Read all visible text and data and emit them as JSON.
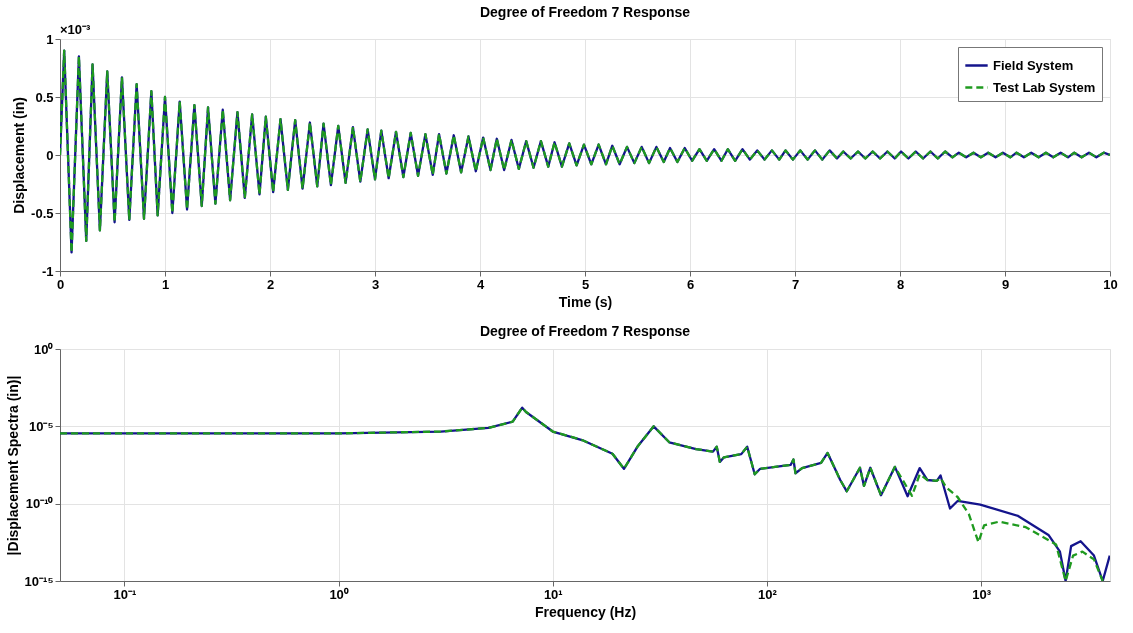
{
  "chart_data": [
    {
      "type": "line",
      "title": "Degree of Freedom 7 Response",
      "xlabel": "Time (s)",
      "ylabel": "Displacement (in)",
      "annotations": [
        "×10⁻³"
      ],
      "xlim": [
        0,
        10
      ],
      "xticks": [
        0,
        1,
        2,
        3,
        4,
        5,
        6,
        7,
        8,
        9,
        10
      ],
      "ylim": [
        -1,
        1
      ],
      "yticks": [
        -1,
        -0.5,
        0,
        0.5,
        1
      ],
      "grid": true,
      "legend": "top right",
      "x": [
        0,
        0.04,
        0.11,
        0.18,
        0.25,
        0.31,
        0.38,
        0.45,
        0.52,
        0.59,
        0.66,
        0.73,
        0.8,
        0.87,
        0.93,
        1.0,
        1.07,
        1.14,
        1.21,
        1.28,
        1.35,
        1.41,
        1.48,
        1.55,
        1.62,
        1.69,
        1.76,
        1.83,
        1.9,
        1.96,
        2.03,
        2.1,
        2.17,
        2.24,
        2.31,
        2.38,
        2.45,
        2.51,
        2.58,
        2.65,
        2.72,
        2.79,
        2.86,
        2.93,
        3.0,
        3.06,
        3.13,
        3.2,
        3.27,
        3.34,
        3.41,
        3.48,
        3.55,
        3.61,
        3.68,
        3.75,
        3.82,
        3.89,
        3.96,
        4.03,
        4.1,
        4.16,
        4.23,
        4.3,
        4.37,
        4.44,
        4.51,
        4.58,
        4.65,
        4.71,
        4.78,
        4.85,
        4.92,
        4.99,
        5.06,
        5.13,
        5.2,
        5.26,
        5.33,
        5.4,
        5.47,
        5.54,
        5.61,
        5.68,
        5.75,
        5.81,
        5.88,
        5.95,
        6.02,
        6.09,
        6.16,
        6.23,
        6.3,
        6.36,
        6.43,
        6.5,
        6.57,
        6.64,
        6.71,
        6.78,
        6.85,
        6.91,
        6.98,
        7.05,
        7.12,
        7.19,
        7.26,
        7.33,
        7.4,
        7.46,
        7.53,
        7.6,
        7.67,
        7.74,
        7.81,
        7.88,
        7.95,
        8.01,
        8.08,
        8.15,
        8.22,
        8.29,
        8.36,
        8.43,
        8.5,
        8.56,
        8.63,
        8.7,
        8.77,
        8.84,
        8.91,
        8.98,
        9.05,
        9.11,
        9.18,
        9.25,
        9.32,
        9.39,
        9.46,
        9.53,
        9.6,
        9.66,
        9.73,
        9.8,
        9.87,
        9.94,
        10.0
      ],
      "series": [
        {
          "name": "Field System",
          "color": "#14148c",
          "line_style": "solid",
          "values": [
            0,
            0.9,
            -0.84,
            0.85,
            -0.74,
            0.78,
            -0.65,
            0.72,
            -0.58,
            0.67,
            -0.56,
            0.61,
            -0.55,
            0.55,
            -0.52,
            0.5,
            -0.5,
            0.46,
            -0.47,
            0.43,
            -0.44,
            0.41,
            -0.42,
            0.39,
            -0.39,
            0.37,
            -0.37,
            0.35,
            -0.34,
            0.33,
            -0.32,
            0.31,
            -0.3,
            0.3,
            -0.29,
            0.28,
            -0.27,
            0.27,
            -0.26,
            0.25,
            -0.24,
            0.24,
            -0.23,
            0.22,
            -0.21,
            0.21,
            -0.2,
            0.2,
            -0.19,
            0.19,
            -0.18,
            0.18,
            -0.17,
            0.18,
            -0.16,
            0.17,
            -0.15,
            0.16,
            -0.14,
            0.15,
            -0.13,
            0.14,
            -0.13,
            0.13,
            -0.12,
            0.12,
            -0.11,
            0.12,
            -0.1,
            0.11,
            -0.1,
            0.1,
            -0.09,
            0.09,
            -0.08,
            0.09,
            -0.08,
            0.08,
            -0.08,
            0.07,
            -0.07,
            0.07,
            -0.07,
            0.07,
            -0.06,
            0.06,
            -0.06,
            0.06,
            -0.05,
            0.05,
            -0.05,
            0.05,
            -0.05,
            0.05,
            -0.05,
            0.05,
            -0.04,
            0.04,
            -0.04,
            0.04,
            -0.04,
            0.04,
            -0.04,
            0.04,
            -0.04,
            0.04,
            -0.04,
            0.04,
            -0.03,
            0.03,
            -0.03,
            0.03,
            -0.03,
            0.03,
            -0.03,
            0.03,
            -0.03,
            0.03,
            -0.03,
            0.03,
            -0.03,
            0.03,
            -0.03,
            0.03,
            -0.02,
            0.02,
            -0.02,
            0.02,
            -0.02,
            0.02,
            -0.02,
            0.02,
            -0.02,
            0.02,
            -0.02,
            0.02,
            -0.02,
            0.02,
            -0.02,
            0.02,
            -0.02,
            0.02,
            -0.02,
            0.02,
            -0.02,
            0.02,
            0
          ]
        },
        {
          "name": "Test Lab System",
          "color": "#1f9a1f",
          "line_style": "dashed",
          "values": [
            0,
            0.9,
            -0.84,
            0.85,
            -0.74,
            0.78,
            -0.65,
            0.72,
            -0.58,
            0.67,
            -0.56,
            0.61,
            -0.55,
            0.55,
            -0.52,
            0.5,
            -0.5,
            0.46,
            -0.47,
            0.43,
            -0.44,
            0.41,
            -0.42,
            0.39,
            -0.39,
            0.37,
            -0.37,
            0.35,
            -0.34,
            0.33,
            -0.32,
            0.31,
            -0.3,
            0.3,
            -0.29,
            0.28,
            -0.27,
            0.27,
            -0.26,
            0.25,
            -0.24,
            0.24,
            -0.23,
            0.22,
            -0.21,
            0.21,
            -0.2,
            0.2,
            -0.19,
            0.19,
            -0.18,
            0.18,
            -0.17,
            0.18,
            -0.16,
            0.17,
            -0.15,
            0.16,
            -0.14,
            0.15,
            -0.13,
            0.14,
            -0.13,
            0.13,
            -0.12,
            0.12,
            -0.11,
            0.12,
            -0.1,
            0.11,
            -0.1,
            0.1,
            -0.09,
            0.09,
            -0.08,
            0.09,
            -0.08,
            0.08,
            -0.08,
            0.07,
            -0.07,
            0.07,
            -0.07,
            0.07,
            -0.06,
            0.06,
            -0.06,
            0.06,
            -0.05,
            0.05,
            -0.05,
            0.05,
            -0.05,
            0.05,
            -0.05,
            0.05,
            -0.04,
            0.04,
            -0.04,
            0.04,
            -0.04,
            0.04,
            -0.04,
            0.04,
            -0.04,
            0.04,
            -0.04,
            0.04,
            -0.03,
            0.03,
            -0.03,
            0.03,
            -0.03,
            0.03,
            -0.03,
            0.03,
            -0.03,
            0.03,
            -0.03,
            0.03,
            -0.03,
            0.03,
            -0.03,
            0.03,
            -0.02,
            0.02,
            -0.02,
            0.02,
            -0.02,
            0.02,
            -0.02,
            0.02,
            -0.02,
            0.02,
            -0.02,
            0.02,
            -0.02,
            0.02,
            -0.02,
            0.02,
            -0.02,
            0.02,
            -0.02,
            0.02,
            -0.02,
            0.02,
            0
          ]
        }
      ]
    },
    {
      "type": "line",
      "title": "Degree of Freedom 7 Response",
      "xlabel": "Frequency (Hz)",
      "ylabel": "|Displacement Spectra (in)|",
      "log": "xy",
      "grid": true,
      "xlim": [
        0.05,
        4000
      ],
      "xticks": [
        {
          "value": 0.1,
          "label": "10⁻¹"
        },
        {
          "value": 1,
          "label": "10⁰"
        },
        {
          "value": 10,
          "label": "10¹"
        },
        {
          "value": 100,
          "label": "10²"
        },
        {
          "value": 1000,
          "label": "10³"
        }
      ],
      "ylim": [
        1e-15,
        1
      ],
      "yticks": [
        {
          "value": 1e-15,
          "label": "10⁻¹⁵"
        },
        {
          "value": 1e-10,
          "label": "10⁻¹⁰"
        },
        {
          "value": 1e-05,
          "label": "10⁻⁵"
        },
        {
          "value": 1,
          "label": "10⁰"
        }
      ],
      "series": [
        {
          "color": "#14148c",
          "line_style": "solid",
          "x": [
            0.05,
            1,
            3,
            5,
            6.5,
            7.2,
            7.5,
            10,
            13.7,
            19,
            21.5,
            25,
            29.6,
            35,
            46.7,
            56,
            58.3,
            60.3,
            63,
            75.9,
            80.9,
            87.7,
            93,
            129,
            133,
            136,
            146,
            179,
            192,
            220,
            236,
            272,
            284,
            304,
            341,
            396,
            454,
            517,
            561,
            621,
            647,
            716,
            777,
            991,
            1489,
            2064,
            2335,
            2482,
            2633,
            2917,
            3366,
            3698,
            3990
          ],
          "values": [
            3.5e-06,
            3.5e-06,
            4.6e-06,
            7.9e-06,
            2e-05,
            0.00016,
            8.5e-05,
            4.6e-06,
            1.3e-06,
            1.7e-07,
            1.8e-08,
            5.4e-07,
            1e-05,
            9.3e-07,
            3.4e-07,
            2.3e-07,
            4.8e-07,
            5e-08,
            1e-07,
            1.6e-07,
            4.8e-07,
            7.9e-09,
            1.8e-08,
            3.2e-08,
            7.1e-08,
            9.3e-09,
            2e-08,
            4.3e-08,
            1.9e-07,
            3.4e-09,
            6.3e-10,
            2.1e-08,
            1.4e-09,
            2.1e-08,
            3.5e-10,
            2.4e-08,
            3e-10,
            2e-08,
            3.4e-09,
            3e-09,
            6.6e-09,
            4.9e-11,
            1.5e-10,
            8.7e-11,
            1.6e-11,
            9.5e-13,
            7.9e-14,
            1e-15,
            1.8e-13,
            3.7e-13,
            4.4e-14,
            1e-15,
            4.4e-14
          ]
        },
        {
          "color": "#1f9a1f",
          "line_style": "dashed",
          "x": [
            0.05,
            1,
            3,
            5,
            6.5,
            7.2,
            7.5,
            10,
            13.7,
            19,
            21.5,
            25,
            29.6,
            35,
            46.7,
            56,
            58.3,
            60.3,
            63,
            75.9,
            80.9,
            87.7,
            93,
            129,
            133,
            136,
            146,
            179,
            192,
            220,
            236,
            272,
            284,
            304,
            341,
            396,
            476,
            517,
            561,
            621,
            647,
            688,
            777,
            877,
            972,
            1033,
            1216,
            1618,
            2240,
            2482,
            2690,
            2973,
            3366,
            3698
          ],
          "values": [
            3.5e-06,
            3.5e-06,
            4.6e-06,
            7.9e-06,
            2e-05,
            0.00016,
            8.5e-05,
            4.6e-06,
            1.3e-06,
            1.7e-07,
            1.8e-08,
            5.4e-07,
            1e-05,
            9.3e-07,
            3.4e-07,
            2.3e-07,
            4.8e-07,
            5e-08,
            1e-07,
            1.6e-07,
            4.8e-07,
            7.9e-09,
            1.8e-08,
            3.2e-08,
            7.1e-08,
            9.3e-09,
            2e-08,
            4.3e-08,
            1.9e-07,
            3.4e-09,
            6.3e-10,
            2.1e-08,
            1.4e-09,
            2.1e-08,
            3.5e-10,
            2.4e-08,
            3.2e-10,
            7.9e-09,
            3.4e-09,
            3e-09,
            4.5e-09,
            1.1e-09,
            2.7e-10,
            2.1e-11,
            3.2e-13,
            4e-12,
            6.9e-12,
            3e-12,
            2.3e-13,
            1e-15,
            4.4e-14,
            7.9e-14,
            2.5e-14,
            1e-15
          ]
        }
      ]
    }
  ]
}
